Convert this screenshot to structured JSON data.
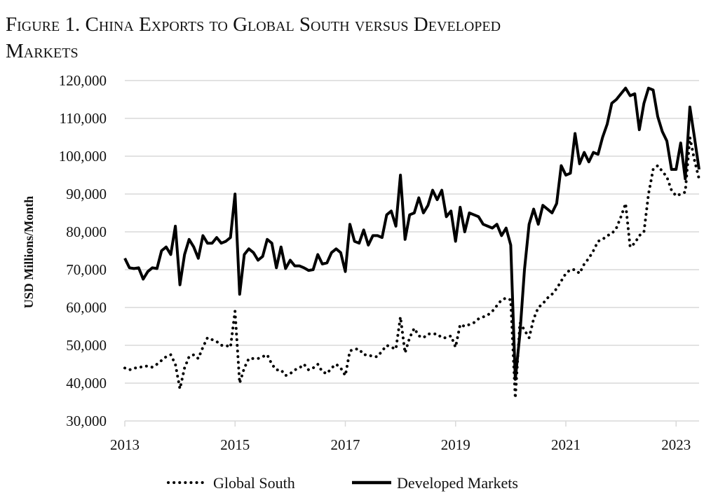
{
  "chart_data": {
    "type": "line",
    "title_line1": "Figure 1. China Exports to Global South versus Developed",
    "title_line2": "Markets",
    "xlabel": "",
    "ylabel": "USD Millions/Month",
    "ylim": [
      30000,
      120000
    ],
    "yticks": [
      30000,
      40000,
      50000,
      60000,
      70000,
      80000,
      90000,
      100000,
      110000,
      120000
    ],
    "ytick_labels": [
      "30,000",
      "40,000",
      "50,000",
      "60,000",
      "70,000",
      "80,000",
      "90,000",
      "100,000",
      "110,000",
      "120,000"
    ],
    "xticks": [
      2013,
      2015,
      2017,
      2019,
      2021,
      2023
    ],
    "xtick_labels": [
      "2013",
      "2015",
      "2017",
      "2019",
      "2021",
      "2023"
    ],
    "x_start": "2013-01",
    "x_frequency": "monthly",
    "grid": true,
    "legend_position": "bottom",
    "series": [
      {
        "name": "Global South",
        "style": "dotted",
        "color": "#000000",
        "values": [
          44,
          43.5,
          44,
          44,
          44.5,
          44.5,
          44.2,
          45,
          46,
          47,
          47.5,
          45,
          38.5,
          44,
          47,
          47.5,
          46.5,
          49.5,
          52,
          51.5,
          51,
          50,
          50,
          49.5,
          59,
          40,
          44,
          46.5,
          46.5,
          46.5,
          47,
          47.5,
          45,
          43.5,
          43.5,
          42,
          42.5,
          43.5,
          44,
          45,
          43.5,
          44,
          45,
          43,
          42.5,
          44,
          45,
          44,
          42,
          48.5,
          49,
          49,
          47.5,
          47.5,
          47,
          47,
          48.5,
          50,
          49.5,
          49,
          57.5,
          48,
          52,
          54.5,
          52.5,
          52,
          53,
          53,
          53,
          52,
          52,
          52.5,
          49.5,
          55.5,
          55,
          55.5,
          56,
          57,
          57.5,
          58,
          59,
          60.5,
          62,
          62.5,
          62,
          36,
          56,
          54,
          52,
          57,
          60,
          61,
          62.5,
          63.5,
          65,
          67,
          69,
          70,
          70,
          69,
          71.5,
          73,
          75,
          77.5,
          78,
          79,
          79.5,
          81,
          84,
          87.5,
          76,
          77,
          79,
          80,
          90,
          96.5,
          97.5,
          96,
          94.5,
          91,
          89.5,
          90,
          90.5,
          105,
          99,
          94
        ]
      },
      {
        "name": "Developed Markets",
        "style": "solid",
        "color": "#000000",
        "values": [
          73,
          70.5,
          70.3,
          70.5,
          67.5,
          69.5,
          70.5,
          70.3,
          75,
          76,
          74,
          81.5,
          66,
          74,
          78,
          76,
          73,
          79,
          77,
          77,
          78.5,
          77,
          77.5,
          78.5,
          90,
          63.5,
          74,
          75.5,
          74.5,
          72.5,
          73.5,
          78,
          77,
          70.5,
          76,
          70.3,
          72.5,
          71,
          71,
          70.5,
          69.8,
          70,
          74,
          71.5,
          71.8,
          74.5,
          75.5,
          74.5,
          69.5,
          82,
          77.5,
          77,
          80.5,
          76.5,
          79,
          79,
          78.5,
          84.5,
          85.5,
          81.5,
          95,
          78,
          84.5,
          85,
          89,
          85,
          87,
          91,
          88.5,
          91,
          84,
          85.5,
          77.5,
          86.5,
          80,
          85,
          84.5,
          84,
          82,
          81.5,
          81,
          82,
          79,
          81,
          76.5,
          41,
          53,
          70,
          82,
          86,
          82,
          87,
          86,
          85,
          87.5,
          97.5,
          95,
          95.5,
          106,
          98,
          101,
          98.5,
          101,
          100.5,
          105,
          108.5,
          114,
          115,
          116.5,
          118,
          116,
          116.5,
          107,
          114,
          118,
          117.5,
          110.5,
          106.5,
          104,
          96.5,
          96.5,
          103.5,
          94,
          113,
          105,
          96.5
        ]
      }
    ],
    "values_unit_note": "series values in thousands of USD millions/month"
  }
}
